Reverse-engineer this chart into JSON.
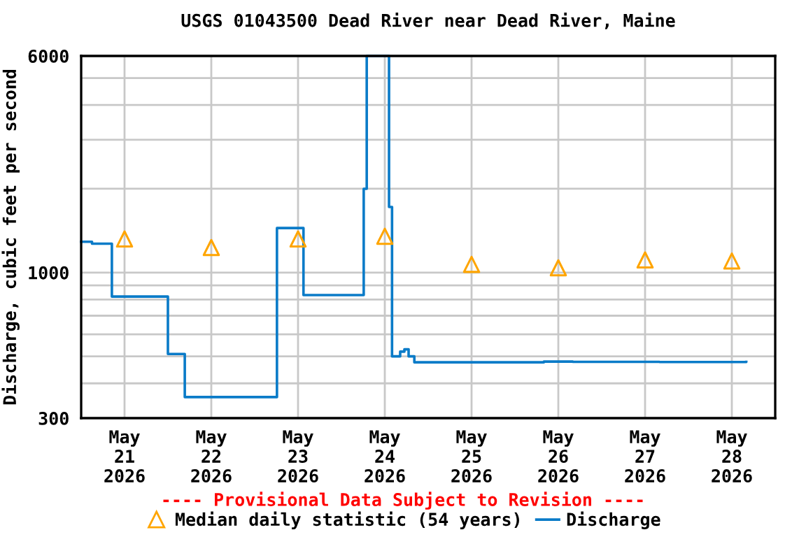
{
  "chart_data": {
    "type": "step",
    "title": "USGS 01043500 Dead River near Dead River, Maine",
    "ylabel": "Discharge, cubic feet per second",
    "annotations": [
      "---- Provisional Data Subject to Revision ----"
    ],
    "log": "y",
    "grid": true,
    "legend": "bottom",
    "xlim": [
      "2026-05-20T12:00",
      "2026-05-28T12:00"
    ],
    "xticks": [
      {
        "value": "2026-05-21",
        "label": "May\n21\n2026"
      },
      {
        "value": "2026-05-22",
        "label": "May\n22\n2026"
      },
      {
        "value": "2026-05-23",
        "label": "May\n23\n2026"
      },
      {
        "value": "2026-05-24",
        "label": "May\n24\n2026"
      },
      {
        "value": "2026-05-25",
        "label": "May\n25\n2026"
      },
      {
        "value": "2026-05-26",
        "label": "May\n26\n2026"
      },
      {
        "value": "2026-05-27",
        "label": "May\n27\n2026"
      },
      {
        "value": "2026-05-28",
        "label": "May\n28\n2026"
      }
    ],
    "ylim": [
      300,
      6000
    ],
    "yticks": [
      300,
      {
        "value": 400,
        "label": null
      },
      {
        "value": 500,
        "label": null
      },
      {
        "value": 600,
        "label": null
      },
      {
        "value": 700,
        "label": null
      },
      {
        "value": 800,
        "label": null
      },
      {
        "value": 900,
        "label": null
      },
      1000,
      {
        "value": 2000,
        "label": null
      },
      {
        "value": 3000,
        "label": null
      },
      {
        "value": 4000,
        "label": null
      },
      {
        "value": 5000,
        "label": null
      },
      6000
    ],
    "series": [
      {
        "name": "Median daily statistic (54 years)",
        "type": "scatter",
        "marker": "triangle",
        "color": "#ffa500",
        "x": [
          "2026-05-21",
          "2026-05-22",
          "2026-05-23",
          "2026-05-24",
          "2026-05-25",
          "2026-05-26",
          "2026-05-27",
          "2026-05-28"
        ],
        "values": [
          1320,
          1230,
          1320,
          1350,
          1070,
          1040,
          1110,
          1100
        ]
      },
      {
        "name": "Discharge",
        "color": "#0a7bc8",
        "x": [
          "2026-05-20T12:00",
          "2026-05-20T15:00",
          "2026-05-20T20:30",
          "2026-05-21T12:00",
          "2026-05-21T16:40",
          "2026-05-22T18:10",
          "2026-05-23T01:30",
          "2026-05-23T18:10",
          "2026-05-23T19:00",
          "2026-05-24T01:10",
          "2026-05-24T02:00",
          "2026-05-24T04:15",
          "2026-05-24T05:25",
          "2026-05-24T06:35",
          "2026-05-24T08:10",
          "2026-05-25T20:00",
          "2026-05-26T04:00",
          "2026-05-27T04:00",
          "2026-05-28T04:00"
        ],
        "values": [
          1290,
          1270,
          820,
          510,
          357,
          1445,
          830,
          2000,
          6000,
          1720,
          500,
          520,
          530,
          500,
          476,
          479,
          478,
          477,
          478
        ]
      }
    ]
  }
}
